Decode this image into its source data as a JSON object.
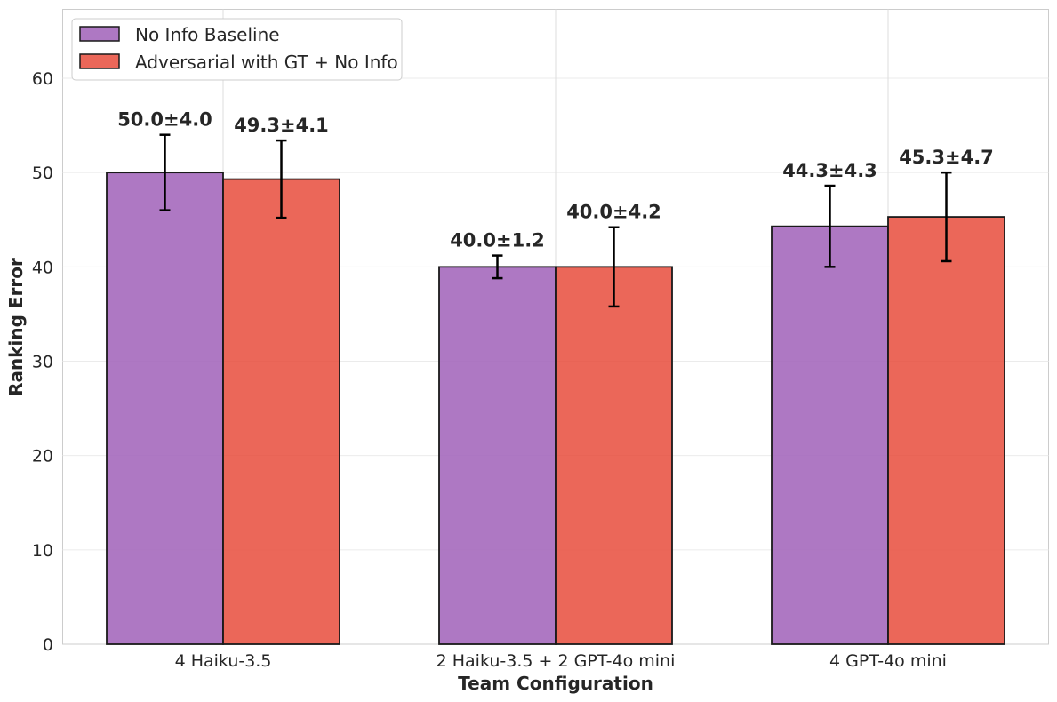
{
  "chart_data": {
    "type": "bar",
    "xlabel": "Team Configuration",
    "ylabel": "Ranking Error",
    "categories": [
      "4 Haiku-3.5",
      "2 Haiku-3.5 + 2 GPT-4o mini",
      "4 GPT-4o mini"
    ],
    "series": [
      {
        "name": "No Info Baseline",
        "color": "#a569bd",
        "values": [
          50.0,
          40.0,
          44.3
        ],
        "errors": [
          4.0,
          1.2,
          4.3
        ],
        "labels": [
          "50.0±4.0",
          "40.0±1.2",
          "44.3±4.3"
        ]
      },
      {
        "name": "Adversarial with GT + No Info",
        "color": "#e74c3c",
        "values": [
          49.3,
          40.0,
          45.3
        ],
        "errors": [
          4.1,
          4.2,
          4.7
        ],
        "labels": [
          "49.3±4.1",
          "40.0±4.2",
          "45.3±4.7"
        ]
      }
    ],
    "yticks": [
      "0",
      "10",
      "20",
      "30",
      "40",
      "50",
      "60"
    ],
    "ylim": [
      0,
      67.3
    ],
    "grid": true,
    "legend_position": "top-left"
  }
}
